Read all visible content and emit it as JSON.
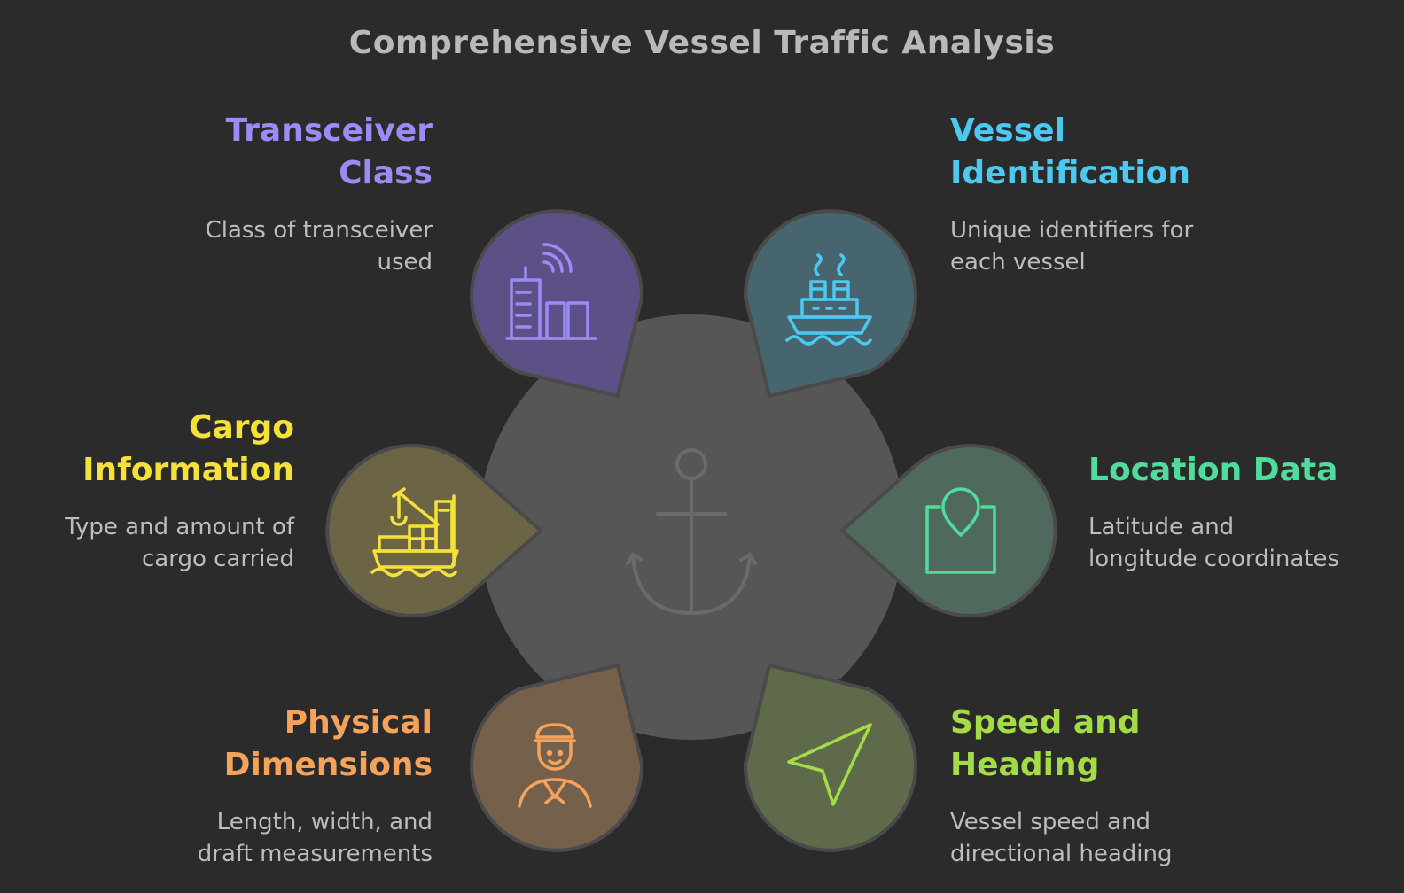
{
  "title": "Comprehensive Vessel Traffic Analysis",
  "colors": {
    "background": "#2b2b2b",
    "center_circle": "#565656",
    "anchor": "#6a6a6a"
  },
  "center_icon": "anchor-icon",
  "segments": [
    {
      "id": "transceiver-class",
      "heading_lines": [
        "Transceiver",
        "Class"
      ],
      "description_lines": [
        "Class of transceiver",
        "used"
      ],
      "icon": "city-signal-icon",
      "accent": "#9b8cf5",
      "fill": "#5c5087"
    },
    {
      "id": "vessel-identification",
      "heading_lines": [
        "Vessel",
        "Identification"
      ],
      "description_lines": [
        "Unique identifiers for",
        "each vessel"
      ],
      "icon": "ship-icon",
      "accent": "#4dc8f0",
      "fill": "#46656f"
    },
    {
      "id": "cargo-information",
      "heading_lines": [
        "Cargo",
        "Information"
      ],
      "description_lines": [
        "Type and amount of",
        "cargo carried"
      ],
      "icon": "cargo-ship-icon",
      "accent": "#f5e13a",
      "fill": "#6b6546"
    },
    {
      "id": "location-data",
      "heading_lines": [
        "Location Data"
      ],
      "description_lines": [
        "Latitude and",
        "longitude coordinates"
      ],
      "icon": "location-pin-icon",
      "accent": "#4fdc9c",
      "fill": "#4f6a5d"
    },
    {
      "id": "physical-dimensions",
      "heading_lines": [
        "Physical",
        "Dimensions"
      ],
      "description_lines": [
        "Length, width, and",
        "draft measurements"
      ],
      "icon": "sailor-icon",
      "accent": "#f5a25a",
      "fill": "#75604b"
    },
    {
      "id": "speed-and-heading",
      "heading_lines": [
        "Speed and",
        "Heading"
      ],
      "description_lines": [
        "Vessel speed and",
        "directional heading"
      ],
      "icon": "navigation-arrow-icon",
      "accent": "#a4dc46",
      "fill": "#5f6a4b"
    }
  ]
}
